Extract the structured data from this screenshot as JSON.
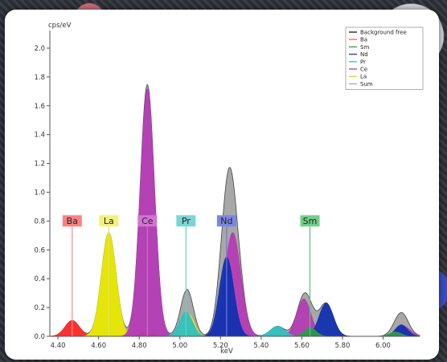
{
  "chart_data": {
    "type": "area",
    "ylabel": "cps/eV",
    "xlabel": "keV",
    "xlim": [
      4.36,
      6.18
    ],
    "ylim": [
      0,
      2.1
    ],
    "x_ticks": [
      "4.40",
      "4.60",
      "4.80",
      "5.00",
      "5.20",
      "5.40",
      "5.60",
      "5.80",
      "6.00"
    ],
    "y_ticks": [
      "0.0",
      "0.2",
      "0.4",
      "0.6",
      "0.8",
      "1.0",
      "1.2",
      "1.4",
      "1.6",
      "1.8",
      "2.0"
    ],
    "grid": false,
    "legend_position": "top-right",
    "legend": [
      {
        "name": "Background free",
        "color": "#333333"
      },
      {
        "name": "Ba",
        "color": "#ff6b6b"
      },
      {
        "name": "Sm",
        "color": "#3aa35a"
      },
      {
        "name": "Nd",
        "color": "#1f3fbf"
      },
      {
        "name": "Pr",
        "color": "#39c6c6"
      },
      {
        "name": "Ce",
        "color": "#c052c0"
      },
      {
        "name": "La",
        "color": "#e0e000"
      },
      {
        "name": "Sum",
        "color": "#aaaaaa"
      }
    ],
    "series": [
      {
        "name": "Ba",
        "color": "#ff2a2a",
        "peaks": [
          [
            4.47,
            0.11,
            0.035
          ],
          [
            4.83,
            0.03,
            0.03
          ]
        ]
      },
      {
        "name": "La",
        "color": "#e8e800",
        "peaks": [
          [
            4.65,
            0.72,
            0.036
          ],
          [
            5.04,
            0.16,
            0.03
          ]
        ]
      },
      {
        "name": "Ce",
        "color": "#b43cb4",
        "peaks": [
          [
            4.84,
            1.72,
            0.035
          ],
          [
            5.26,
            0.72,
            0.04
          ],
          [
            5.61,
            0.26,
            0.035
          ],
          [
            6.1,
            0.07,
            0.035
          ]
        ]
      },
      {
        "name": "Pr",
        "color": "#2fc0c0",
        "peaks": [
          [
            5.03,
            0.17,
            0.032
          ],
          [
            5.48,
            0.07,
            0.035
          ]
        ]
      },
      {
        "name": "Nd",
        "color": "#1230b0",
        "peaks": [
          [
            5.23,
            0.55,
            0.035
          ],
          [
            5.72,
            0.23,
            0.035
          ],
          [
            6.09,
            0.08,
            0.03
          ]
        ]
      },
      {
        "name": "Sm",
        "color": "#2f9a4a",
        "peaks": [
          [
            5.64,
            0.06,
            0.03
          ],
          [
            6.06,
            0.03,
            0.03
          ]
        ]
      }
    ],
    "sum_color": "#a8a8a8",
    "element_markers": [
      {
        "label": "Ba",
        "x": 4.47,
        "box_color": "#ff8080",
        "line_color": "#ff8888"
      },
      {
        "label": "La",
        "x": 4.65,
        "box_color": "#f2f27a",
        "line_color": "#e0e070"
      },
      {
        "label": "Ce",
        "x": 4.84,
        "box_color": "#d472d4",
        "line_color": "#d070d0"
      },
      {
        "label": "Pr",
        "x": 5.03,
        "box_color": "#7ad6d6",
        "line_color": "#60d0d0"
      },
      {
        "label": "Nd",
        "x": 5.23,
        "box_color": "#7a86e6",
        "line_color": "#6a78e0"
      },
      {
        "label": "Sm",
        "x": 5.64,
        "box_color": "#6fcf8a",
        "line_color": "#5cc07a"
      }
    ]
  }
}
